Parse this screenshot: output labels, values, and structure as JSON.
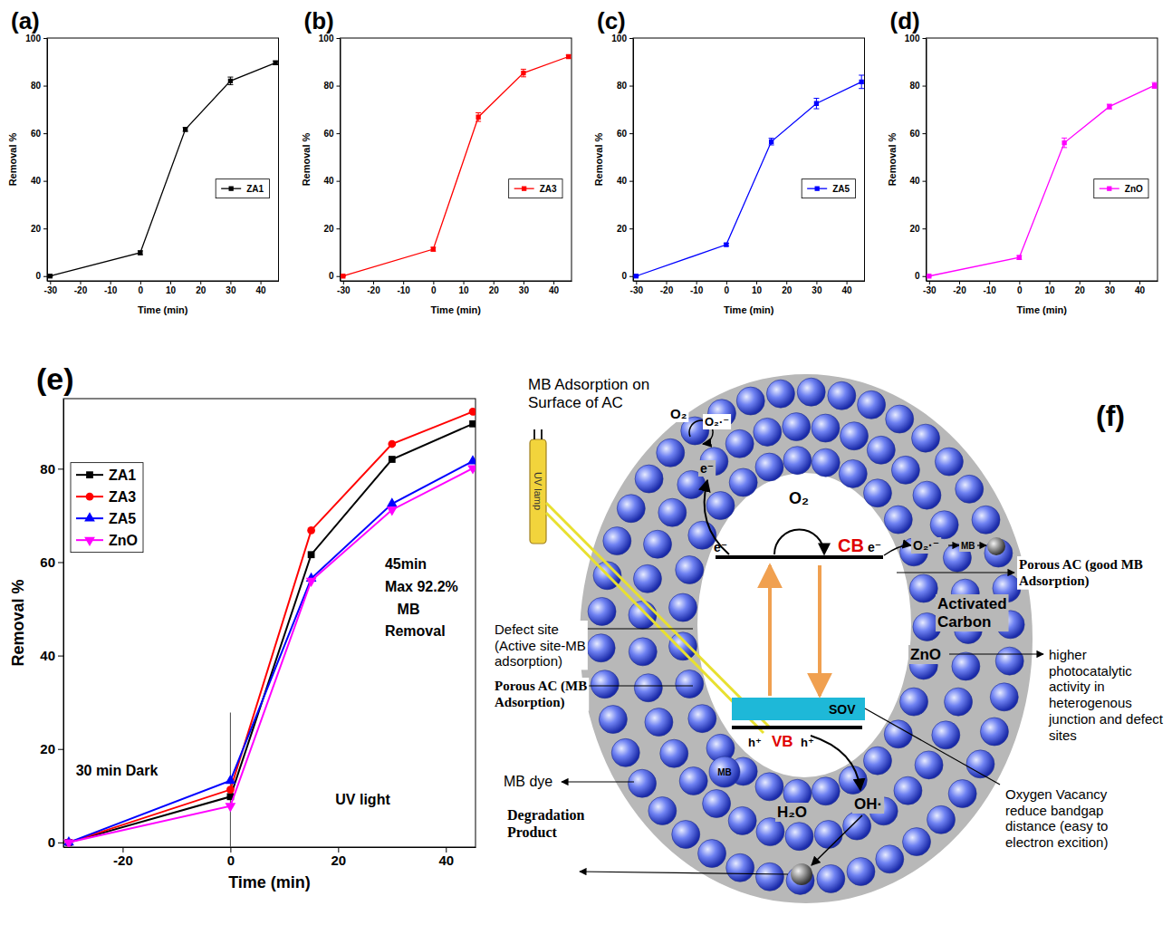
{
  "chart_data": [
    {
      "type": "line",
      "title": "(a)",
      "x_label": "Time (min)",
      "y_label": "Removal %",
      "x": [
        -30,
        0,
        15,
        30,
        45
      ],
      "xlim": [
        -31,
        46
      ],
      "xticks": [
        -30,
        -20,
        -10,
        0,
        10,
        20,
        30,
        40
      ],
      "ylim": [
        -2,
        100
      ],
      "yticks": [
        0,
        20,
        40,
        60,
        80,
        100
      ],
      "legend": "right",
      "series": [
        {
          "name": "ZA1",
          "color": "#000000",
          "marker": "square",
          "values": [
            0,
            9.8,
            61.6,
            82.0,
            89.6
          ],
          "errors": [
            0,
            0.8,
            0.8,
            1.6,
            0.8
          ]
        }
      ]
    },
    {
      "type": "line",
      "title": "(b)",
      "x_label": "Time (min)",
      "y_label": "Removal %",
      "x": [
        -30,
        0,
        15,
        30,
        45
      ],
      "xlim": [
        -31,
        46
      ],
      "xticks": [
        -30,
        -20,
        -10,
        0,
        10,
        20,
        30,
        40
      ],
      "ylim": [
        -2,
        100
      ],
      "yticks": [
        0,
        20,
        40,
        60,
        80,
        100
      ],
      "legend": "right",
      "series": [
        {
          "name": "ZA3",
          "color": "#ff0000",
          "marker": "square",
          "values": [
            0,
            11.3,
            66.8,
            85.3,
            92.2
          ],
          "errors": [
            0,
            0.8,
            1.8,
            1.6,
            0.6
          ]
        }
      ]
    },
    {
      "type": "line",
      "title": "(c)",
      "x_label": "Time (min)",
      "y_label": "Removal %",
      "x": [
        -30,
        0,
        15,
        30,
        45
      ],
      "xlim": [
        -31,
        46
      ],
      "xticks": [
        -30,
        -20,
        -10,
        0,
        10,
        20,
        30,
        40
      ],
      "ylim": [
        -2,
        100
      ],
      "yticks": [
        0,
        20,
        40,
        60,
        80,
        100
      ],
      "legend": "right",
      "series": [
        {
          "name": "ZA5",
          "color": "#0000ff",
          "marker": "square",
          "values": [
            0,
            13.2,
            56.5,
            72.5,
            81.6
          ],
          "errors": [
            0,
            0.6,
            1.4,
            2.2,
            2.8
          ]
        }
      ]
    },
    {
      "type": "line",
      "title": "(d)",
      "x_label": "Time (min)",
      "y_label": "Removal %",
      "x": [
        -30,
        0,
        15,
        30,
        45
      ],
      "xlim": [
        -31,
        46
      ],
      "xticks": [
        -30,
        -20,
        -10,
        0,
        10,
        20,
        30,
        40
      ],
      "ylim": [
        -2,
        100
      ],
      "yticks": [
        0,
        20,
        40,
        60,
        80,
        100
      ],
      "legend": "right",
      "series": [
        {
          "name": "ZnO",
          "color": "#ff00ff",
          "marker": "square",
          "values": [
            0,
            7.8,
            56.0,
            71.2,
            80.1
          ],
          "errors": [
            0,
            0.8,
            2.0,
            1.0,
            1.2
          ]
        }
      ]
    },
    {
      "type": "line",
      "title": "(e)",
      "x_label": "Time (min)",
      "y_label": "Removal %",
      "x": [
        -30,
        0,
        15,
        30,
        45
      ],
      "xlim": [
        -31,
        45.5
      ],
      "xticks": [
        -20,
        0,
        20,
        40
      ],
      "ylim": [
        -1,
        95
      ],
      "yticks": [
        0,
        20,
        40,
        60,
        80
      ],
      "legend": "upper left",
      "annotations": [
        "30 min Dark",
        "UV light",
        "45min",
        "Max 92.2%",
        "MB",
        "Removal"
      ],
      "series": [
        {
          "name": "ZA1",
          "color": "#000000",
          "marker": "square",
          "values": [
            0,
            9.8,
            61.6,
            82.0,
            89.6
          ]
        },
        {
          "name": "ZA3",
          "color": "#ff0000",
          "marker": "circle",
          "values": [
            0,
            11.3,
            66.8,
            85.3,
            92.2
          ]
        },
        {
          "name": "ZA5",
          "color": "#0000ff",
          "marker": "triangle-up",
          "values": [
            0,
            13.2,
            56.5,
            72.5,
            81.6
          ]
        },
        {
          "name": "ZnO",
          "color": "#ff00ff",
          "marker": "triangle-down",
          "values": [
            0,
            7.8,
            56.0,
            71.2,
            80.1
          ]
        }
      ]
    }
  ],
  "diagram": {
    "label": "(f)",
    "texts": {
      "mb_adsorption": "MB Adsorption on Surface of AC",
      "o2_top": "O₂",
      "o2rad_top": "O₂·⁻",
      "e_top": "e⁻",
      "o2_mid": "O₂",
      "o2rad_mid": "O₂·⁻",
      "mb_ball": "MB",
      "cb": "CB",
      "e_cb_left": "e⁻",
      "e_cb_right": "e⁻",
      "vb": "VB",
      "h_left": "h⁺",
      "h_right": "h⁺",
      "sov": "SOV",
      "mb_sphere": "MB",
      "h2o": "H₂O",
      "oh": "OH·",
      "uv_lamp": "UV lamp",
      "porous_ac_right": "Porous AC (good MB Adsorption)",
      "activated_carbon": "Activated Carbon",
      "zno": "ZnO",
      "higher": "higher photocatalytic activity in heterogenous junction and defect sites",
      "defect_site": "Defect site (Active site-MB adsorption)",
      "porous_ac_left": "Porous AC (MB Adsorption)",
      "mb_dye": "MB dye",
      "degradation": "Degradation Product",
      "oxygen_vacancy": "Oxygen Vacancy reduce bandgap distance (easy to electron excition)"
    }
  }
}
